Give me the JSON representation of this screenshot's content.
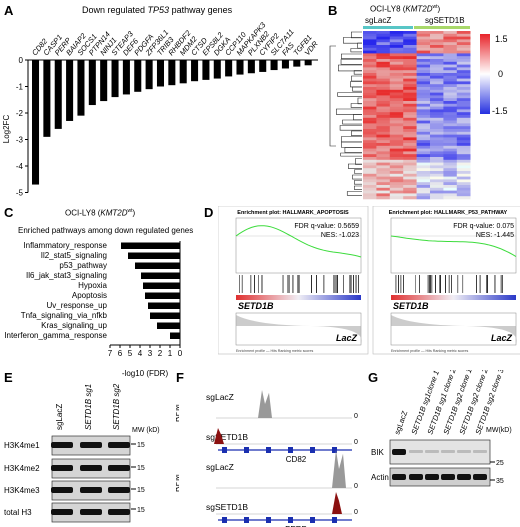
{
  "figure": {
    "panels": {
      "A": {
        "letter": "A",
        "title_pre": "Down regulated ",
        "title_gene": "TP53",
        "title_post": " pathway genes",
        "ylabel": "Log2FC",
        "yticks": [
          "0",
          "-1",
          "-2",
          "-3",
          "-4",
          "-5"
        ]
      },
      "B": {
        "letter": "B",
        "title_pre": "OCI-LY8 (",
        "title_gene": "KMT2D",
        "title_sup": "wt",
        "title_post": ")",
        "group1": "sgLacZ",
        "group2": "sgSETD1B",
        "legend_ticks": [
          "1.5",
          "0",
          "-1.5"
        ]
      },
      "C": {
        "letter": "C",
        "title_pre": "OCI-LY8 (",
        "title_gene": "KMT2D",
        "title_sup": "wt",
        "title_post": ")",
        "subtitle": "Enriched pathways among down regulated genes",
        "xlabel": "-log10 (FDR)",
        "xticks": [
          "7",
          "6",
          "5",
          "4",
          "3",
          "2",
          "1",
          "0"
        ]
      },
      "D": {
        "letter": "D",
        "gsea": [
          {
            "title": "Enrichment plot: HALLMARK_APOPTOSIS",
            "fdr": "FDR q-value: 0.5659",
            "nes": "NES: -1.023",
            "top_label": "SETD1B",
            "bottom_label": "LacZ",
            "legend": "Enrichment profile — Hits     Ranking metric scores"
          },
          {
            "title": "Enrichment plot: HALLMARK_P53_PATHWAY",
            "fdr": "FDR q-value: 0.075",
            "nes": "NES: -1.445",
            "top_label": "SETD1B",
            "bottom_label": "LacZ",
            "legend": "Enrichment profile — Hits     Ranking metric scores"
          }
        ]
      },
      "E": {
        "letter": "E",
        "lanes": [
          "sgLacZ",
          "SETD1B sg1",
          "SETD1B sg2"
        ],
        "rows": [
          "H3K4me1",
          "H3K4me2",
          "H3K4me3",
          "total H3"
        ],
        "mw_header": "MW (kD)",
        "mw": "15"
      },
      "F": {
        "letter": "F",
        "rpm": "RPM",
        "track1": "sgLacZ",
        "track2": "sgSETD1B",
        "gene1": "CD82",
        "gene2": "PERP",
        "zero": "0"
      },
      "G": {
        "letter": "G",
        "lanes": [
          "sgLacZ",
          "SETD1B sg1clone 1",
          "SETD1B sg1 clone 2",
          "SETD1B sg2 clone 1",
          "SETD1B sg2 clone 2",
          "SETD1B sg2 clone 3"
        ],
        "rows": [
          "BIK",
          "Actin"
        ],
        "mw_header": "MW(kD)",
        "mw_values": [
          "25",
          "35"
        ]
      }
    }
  },
  "chart_data": [
    {
      "type": "bar",
      "panel": "A",
      "title": "Down regulated TP53 pathway genes",
      "ylabel": "Log2FC",
      "ylim": [
        -5,
        0
      ],
      "categories": [
        "CD82",
        "CASP1",
        "PERP",
        "BAIAP2",
        "SOCS1",
        "PTPN14",
        "NINJ1",
        "STEAP3",
        "DEF6",
        "PDGFA",
        "ZFP36L1",
        "TRIB3",
        "RHBDF2",
        "MDM2",
        "CTSD",
        "EPS8L2",
        "DGKA",
        "CCP110",
        "MAPKAPK3",
        "PLXNB2",
        "CYFIP2",
        "SLC7A11",
        "FAS",
        "TGFB1",
        "VDR"
      ],
      "values": [
        -4.7,
        -2.9,
        -2.6,
        -2.3,
        -2.1,
        -1.7,
        -1.55,
        -1.4,
        -1.3,
        -1.2,
        -1.1,
        -1.0,
        -0.95,
        -0.88,
        -0.8,
        -0.75,
        -0.7,
        -0.62,
        -0.55,
        -0.5,
        -0.45,
        -0.38,
        -0.32,
        -0.25,
        -0.2
      ]
    },
    {
      "type": "bar",
      "panel": "C",
      "title": "Enriched pathways among down regulated genes",
      "xlabel": "-log10 (FDR)",
      "xlim": [
        0,
        7
      ],
      "categories": [
        "Inflammatory_response",
        "Il2_stat5_signaling",
        "p53_pathway",
        "Il6_jak_stat3_signaling",
        "Hypoxia",
        "Apoptosis",
        "Uv_response_up",
        "Tnfa_signaling_via_nfkb",
        "Kras_signaling_up",
        "Interferon_gamma_response"
      ],
      "values": [
        5.9,
        5.2,
        4.5,
        3.9,
        3.7,
        3.5,
        3.2,
        3.0,
        2.3,
        1.0
      ]
    }
  ]
}
